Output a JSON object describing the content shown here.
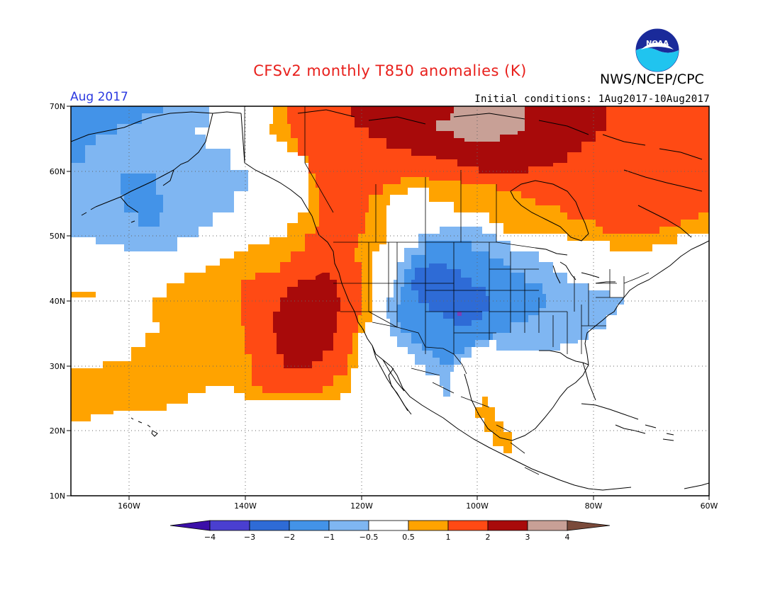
{
  "title": "CFSv2 monthly T850 anomalies (K)",
  "agency": "NWS/NCEP/CPC",
  "logo_text": "NOAA",
  "period": "Aug 2017",
  "initial_conditions": "Initial conditions: 1Aug2017-10Aug2017",
  "map": {
    "lon_range": [
      -170,
      -60
    ],
    "lat_range": [
      10,
      70
    ],
    "lon_ticks": [
      "160W",
      "140W",
      "120W",
      "100W",
      "80W",
      "60W"
    ],
    "lat_ticks": [
      "70N",
      "60N",
      "50N",
      "40N",
      "30N",
      "20N",
      "10N"
    ],
    "grid": true
  },
  "colorbar": {
    "labels": [
      "−4",
      "−3",
      "−2",
      "−1",
      "−0.5",
      "0.5",
      "1",
      "2",
      "3",
      "4"
    ],
    "colors": [
      "#3b0fa8",
      "#4a3fd0",
      "#2e6bd6",
      "#4393e8",
      "#7fb6f2",
      "#ffffff",
      "#ffa300",
      "#ff4a14",
      "#a80a0a",
      "#c8a096",
      "#7a4a3a"
    ]
  },
  "anomaly_regions": [
    {
      "name": "north-pacific-cold",
      "value_range": "-1 to -0.5",
      "color": "#7fb6f2"
    },
    {
      "name": "aleutian-cold",
      "value_range": "-2 to -1",
      "color": "#4393e8"
    },
    {
      "name": "central-us-cold",
      "value_range": "-2 to -1",
      "color": "#4393e8"
    },
    {
      "name": "rockies-cold",
      "value_range": "-3 to -2",
      "color": "#2e6bd6"
    },
    {
      "name": "east-pacific-warm",
      "value_range": "0.5 to 1",
      "color": "#ffa300"
    },
    {
      "name": "offshore-california-warm",
      "value_range": "1 to 2",
      "color": "#ff4a14"
    },
    {
      "name": "offshore-california-hot",
      "value_range": "2 to 3",
      "color": "#a80a0a"
    },
    {
      "name": "canada-warm",
      "value_range": "1 to 2",
      "color": "#ff4a14"
    },
    {
      "name": "hudson-bay-hot",
      "value_range": "2 to 3",
      "color": "#a80a0a"
    },
    {
      "name": "arctic-very-hot",
      "value_range": "3 to 4",
      "color": "#c8a096"
    },
    {
      "name": "gulf-mexico-warm",
      "value_range": "0.5 to 1",
      "color": "#ffa300"
    }
  ]
}
